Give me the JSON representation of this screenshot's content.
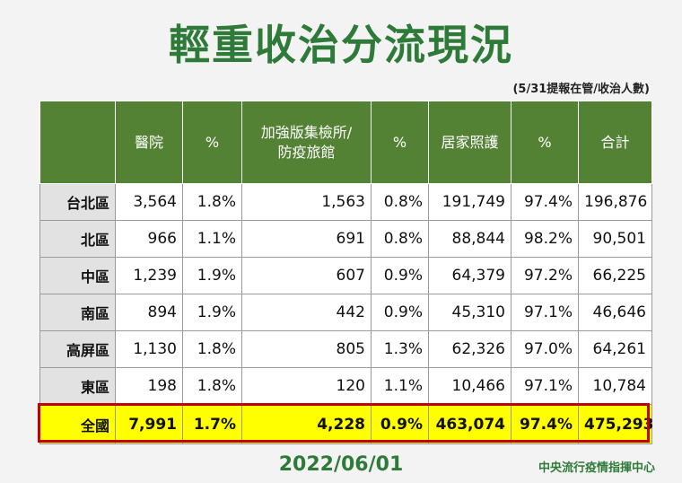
{
  "title": "輕重收治分流現況",
  "subtitle": "(5/31提報在管/收治人數)",
  "table": {
    "headers": [
      "",
      "醫院",
      "%",
      "加強版集檢所/\n防疫旅館",
      "%",
      "居家照護",
      "%",
      "合計"
    ],
    "rows": [
      [
        "台北區",
        "3,564",
        "1.8%",
        "1,563",
        "0.8%",
        "191,749",
        "97.4%",
        "196,876"
      ],
      [
        "北區",
        "966",
        "1.1%",
        "691",
        "0.8%",
        "88,844",
        "98.2%",
        "90,501"
      ],
      [
        "中區",
        "1,239",
        "1.9%",
        "607",
        "0.9%",
        "64,379",
        "97.2%",
        "66,225"
      ],
      [
        "南區",
        "894",
        "1.9%",
        "442",
        "0.9%",
        "45,310",
        "97.1%",
        "46,646"
      ],
      [
        "高屏區",
        "1,130",
        "1.8%",
        "805",
        "1.3%",
        "62,326",
        "97.0%",
        "64,261"
      ],
      [
        "東區",
        "198",
        "1.8%",
        "120",
        "1.1%",
        "10,466",
        "97.1%",
        "10,784"
      ]
    ],
    "total": [
      "全國",
      "7,991",
      "1.7%",
      "4,228",
      "0.9%",
      "463,074",
      "97.4%",
      "475,293"
    ]
  },
  "date": "2022/06/01",
  "footer": "中央流行疫情指揮中心",
  "colors": {
    "header_bg": "#548235",
    "title": "#2e7a38",
    "total_bg": "#ffff00",
    "total_border": "#c00000"
  }
}
